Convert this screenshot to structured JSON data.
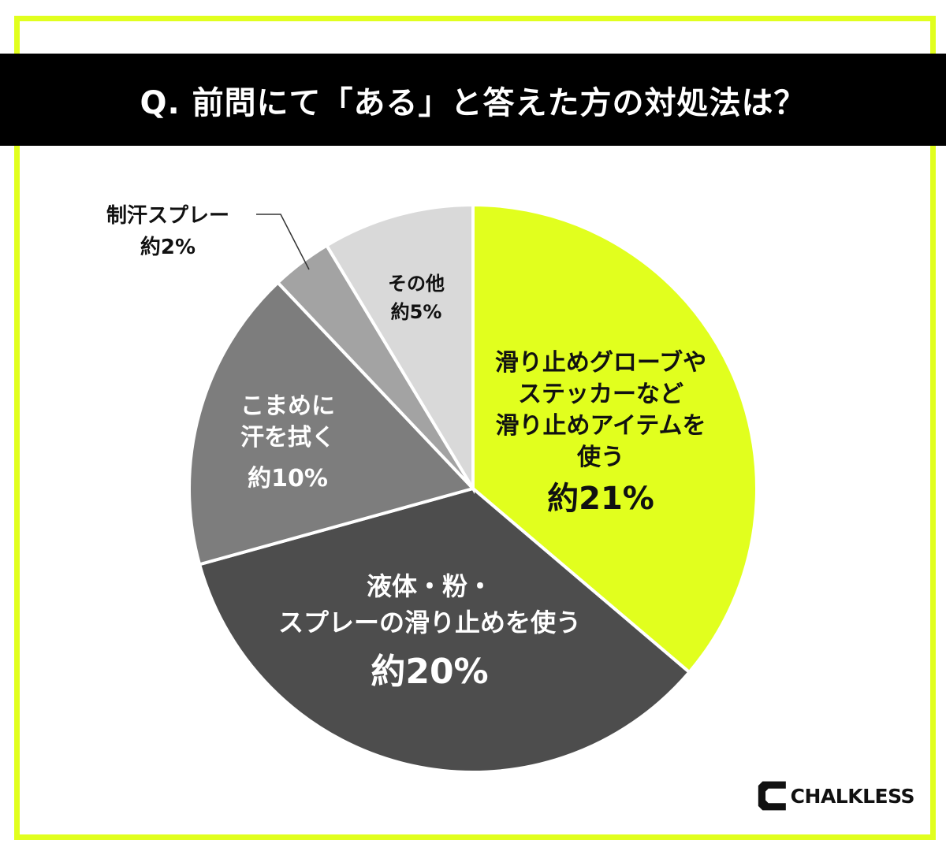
{
  "title": "Q. 前問にて「ある」と答えた方の対処法は？",
  "brand": "CHALKLESS",
  "colors": {
    "frame": "#e1ff1e",
    "title_bg": "#000000"
  },
  "chart_data": {
    "type": "pie",
    "title": "Q. 前問にて「ある」と答えた方の対処法は？",
    "slices": [
      {
        "label_lines": [
          "滑り止めグローブや",
          "ステッカーなど",
          "滑り止めアイテムを",
          "使う"
        ],
        "value_text": "約21%",
        "value": 21,
        "color": "#e1ff1e",
        "text_color": "#111111"
      },
      {
        "label_lines": [
          "液体・粉・",
          "スプレーの滑り止めを使う"
        ],
        "value_text": "約20%",
        "value": 20,
        "color": "#4d4d4d",
        "text_color": "#ffffff"
      },
      {
        "label_lines": [
          "こまめに",
          "汗を拭く"
        ],
        "value_text": "約10%",
        "value": 10,
        "color": "#7d7d7d",
        "text_color": "#ffffff"
      },
      {
        "label_lines": [
          "制汗スプレー"
        ],
        "value_text": "約2%",
        "value": 2,
        "color": "#a3a3a3",
        "text_color": "#111111"
      },
      {
        "label_lines": [
          "その他"
        ],
        "value_text": "約5%",
        "value": 5,
        "color": "#d9d9d9",
        "text_color": "#111111"
      }
    ]
  }
}
